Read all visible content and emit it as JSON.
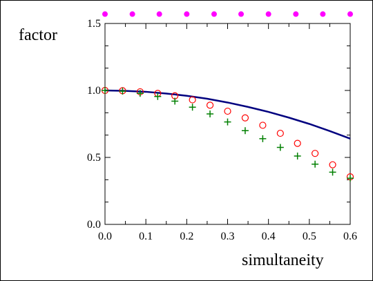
{
  "chart_data": {
    "type": "scatter",
    "title": "",
    "xlabel": "simultaneity",
    "ylabel": "factor",
    "xlim": [
      0.0,
      0.6
    ],
    "ylim": [
      0.0,
      1.5
    ],
    "x_ticks": [
      0.0,
      0.1,
      0.2,
      0.3,
      0.4,
      0.5,
      0.6
    ],
    "x_tick_labels": [
      "0.0",
      "0.1",
      "0.2",
      "0.3",
      "0.4",
      "0.5",
      "0.6"
    ],
    "y_ticks": [
      0.0,
      0.5,
      1.0,
      1.5
    ],
    "y_tick_labels": [
      "0.0",
      "0.5",
      "1.0",
      "1.5"
    ],
    "grid": false,
    "legend": "none",
    "series": [
      {
        "marker": "line",
        "color": "#00007f",
        "x": [
          0.0,
          0.05,
          0.1,
          0.15,
          0.2,
          0.25,
          0.3,
          0.35,
          0.4,
          0.45,
          0.5,
          0.55,
          0.6
        ],
        "y": [
          1.0,
          0.997,
          0.99,
          0.977,
          0.96,
          0.938,
          0.91,
          0.877,
          0.84,
          0.797,
          0.75,
          0.697,
          0.64
        ]
      },
      {
        "marker": "open-circle",
        "color": "#ff0000",
        "x": [
          0.0,
          0.043,
          0.086,
          0.129,
          0.171,
          0.214,
          0.257,
          0.3,
          0.343,
          0.386,
          0.429,
          0.471,
          0.514,
          0.557,
          0.6
        ],
        "y": [
          1.0,
          0.998,
          0.99,
          0.978,
          0.96,
          0.93,
          0.89,
          0.845,
          0.795,
          0.74,
          0.68,
          0.605,
          0.53,
          0.445,
          0.355
        ]
      },
      {
        "marker": "plus",
        "color": "#007f00",
        "x": [
          0.0,
          0.043,
          0.086,
          0.129,
          0.171,
          0.214,
          0.257,
          0.3,
          0.343,
          0.386,
          0.429,
          0.471,
          0.514,
          0.557,
          0.6
        ],
        "y": [
          1.0,
          0.995,
          0.978,
          0.955,
          0.92,
          0.875,
          0.825,
          0.765,
          0.7,
          0.64,
          0.575,
          0.51,
          0.45,
          0.39,
          0.345
        ]
      },
      {
        "marker": "filled-circle",
        "color": "#ff00ff",
        "x": [
          0.0,
          0.067,
          0.133,
          0.2,
          0.267,
          0.333,
          0.4,
          0.467,
          0.533,
          0.6
        ],
        "y": [
          1.57,
          1.57,
          1.57,
          1.57,
          1.57,
          1.57,
          1.57,
          1.57,
          1.57,
          1.57
        ]
      }
    ]
  }
}
